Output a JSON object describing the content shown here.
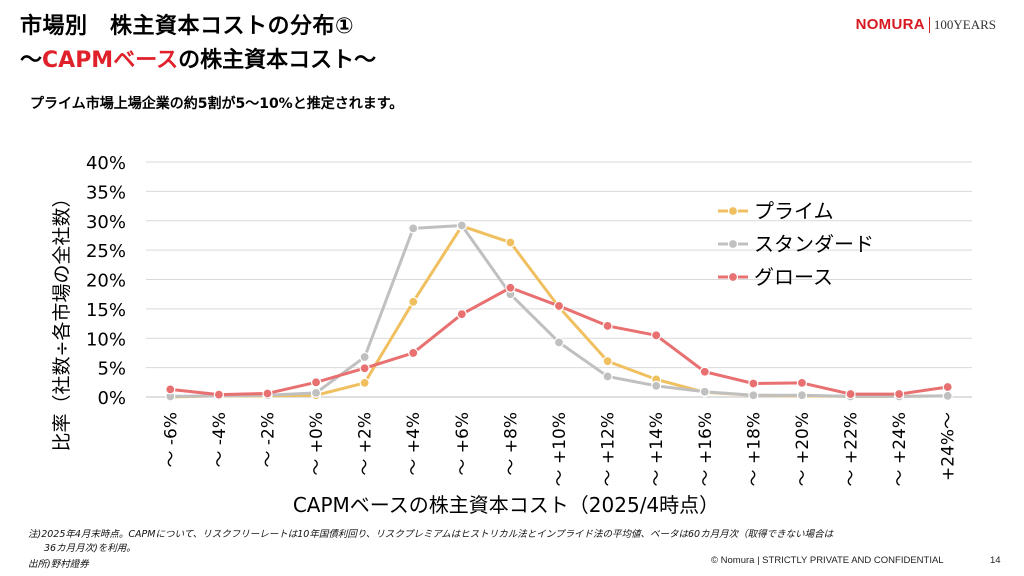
{
  "header": {
    "title_line1": "市場別　株主資本コストの分布①",
    "title_line2_pre": "～",
    "title_line2_red": "CAPMベース",
    "title_line2_post": "の株主資本コスト～",
    "subtitle": "プライム市場上場企業の約5割が5～10%と推定されます。"
  },
  "logo": {
    "brand": "NOMURA",
    "years": "100YEARS"
  },
  "colors": {
    "prime": "#f0c060",
    "standard": "#c0c0c0",
    "growth": "#e87070",
    "title_red": "#e0202a",
    "brand_red": "#d71920"
  },
  "chart_data": {
    "type": "line",
    "xlabel": "CAPMベースの株主資本コスト（2025/4時点）",
    "ylabel": "比率（社数÷各市場の全社数）",
    "ylim": [
      0,
      40
    ],
    "yticks": [
      "0%",
      "5%",
      "10%",
      "15%",
      "20%",
      "25%",
      "30%",
      "35%",
      "40%"
    ],
    "grid": true,
    "legend_position": "upper-right",
    "categories": [
      "～ -6%",
      "～ -4%",
      "～ -2%",
      "～ +0%",
      "～ +2%",
      "～ +4%",
      "～ +6%",
      "～ +8%",
      "～ +10%",
      "～ +12%",
      "～ +14%",
      "～ +16%",
      "～ +18%",
      "～ +20%",
      "～ +22%",
      "～ +24%",
      "+24%～"
    ],
    "series": [
      {
        "name": "プライム",
        "color": "#f0c060",
        "values": [
          0.0,
          0.2,
          0.2,
          0.3,
          2.4,
          16.2,
          29.1,
          26.3,
          15.3,
          6.1,
          3.0,
          0.8,
          0.3,
          0.2,
          0.1,
          0.1,
          0.2
        ]
      },
      {
        "name": "スタンダード",
        "color": "#c0c0c0",
        "values": [
          0.1,
          0.2,
          0.3,
          0.7,
          6.8,
          28.7,
          29.2,
          17.5,
          9.3,
          3.5,
          1.9,
          0.9,
          0.3,
          0.3,
          0.1,
          0.1,
          0.2
        ]
      },
      {
        "name": "グロース",
        "color": "#e87070",
        "values": [
          1.3,
          0.4,
          0.6,
          2.5,
          4.9,
          7.5,
          14.1,
          18.6,
          15.5,
          12.1,
          10.5,
          4.3,
          2.3,
          2.4,
          0.5,
          0.5,
          1.7
        ]
      }
    ]
  },
  "notes": {
    "line1": "注)2025年4月末時点。CAPMについて、リスクフリーレートは10年国債利回り、リスクプレミアムはヒストリカル法とインプライド法の平均値、ベータは60カ月月次（取得できない場合は",
    "line2": "36カ月月次)を利用。",
    "line3": "出所)野村證券"
  },
  "footer": {
    "copyright": "© Nomura | STRICTLY PRIVATE AND CONFIDENTIAL",
    "page": "14"
  }
}
